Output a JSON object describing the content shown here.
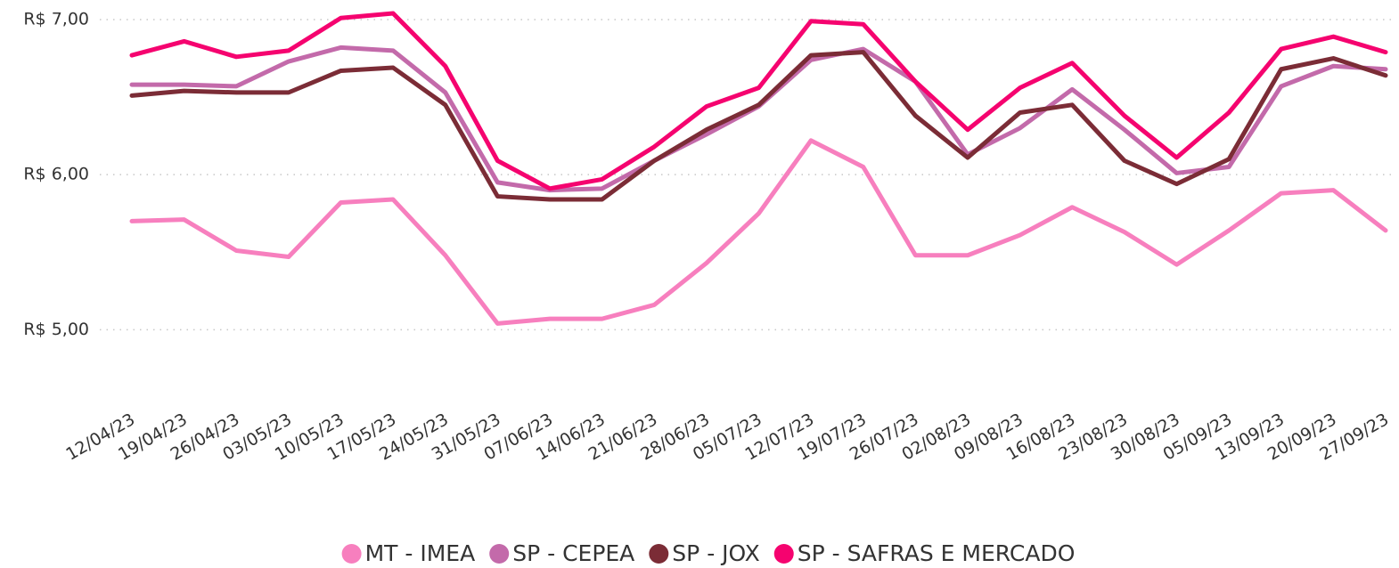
{
  "chart_data": {
    "type": "line",
    "categories": [
      "12/04/23",
      "19/04/23",
      "26/04/23",
      "03/05/23",
      "10/05/23",
      "17/05/23",
      "24/05/23",
      "31/05/23",
      "07/06/23",
      "14/06/23",
      "21/06/23",
      "28/06/23",
      "05/07/23",
      "12/07/23",
      "19/07/23",
      "26/07/23",
      "02/08/23",
      "09/08/23",
      "16/08/23",
      "23/08/23",
      "30/08/23",
      "05/09/23",
      "13/09/23",
      "20/09/23",
      "27/09/23"
    ],
    "series": [
      {
        "name": "MT - IMEA",
        "color": "#f77fbe",
        "values": [
          5.7,
          5.71,
          5.51,
          5.47,
          5.82,
          5.84,
          5.48,
          5.04,
          5.07,
          5.07,
          5.16,
          5.43,
          5.75,
          6.22,
          6.05,
          5.48,
          5.48,
          5.61,
          5.79,
          5.63,
          5.42,
          5.64,
          5.88,
          5.9,
          5.64
        ]
      },
      {
        "name": "SP - CEPEA",
        "color": "#c36aaa",
        "values": [
          6.58,
          6.58,
          6.57,
          6.73,
          6.82,
          6.8,
          6.53,
          5.95,
          5.9,
          5.91,
          6.09,
          6.26,
          6.44,
          6.74,
          6.81,
          6.6,
          6.13,
          6.3,
          6.55,
          6.29,
          6.01,
          6.05,
          6.57,
          6.7,
          6.68
        ]
      },
      {
        "name": "SP - JOX",
        "color": "#7b2c36",
        "values": [
          6.51,
          6.54,
          6.53,
          6.53,
          6.67,
          6.69,
          6.45,
          5.86,
          5.84,
          5.84,
          6.09,
          6.29,
          6.45,
          6.77,
          6.79,
          6.38,
          6.11,
          6.4,
          6.45,
          6.09,
          5.94,
          6.1,
          6.68,
          6.75,
          6.64
        ]
      },
      {
        "name": "SP - SAFRAS E MERCADO",
        "color": "#f5036f",
        "values": [
          6.77,
          6.86,
          6.76,
          6.8,
          7.01,
          7.04,
          6.7,
          6.09,
          5.91,
          5.97,
          6.18,
          6.44,
          6.56,
          6.99,
          6.97,
          6.6,
          6.29,
          6.56,
          6.72,
          6.38,
          6.11,
          6.4,
          6.81,
          6.89,
          6.79
        ]
      }
    ],
    "ylim": [
      4.6,
      7.1
    ],
    "yticks": [
      {
        "value": 5,
        "label": "R$ 5,00"
      },
      {
        "value": 6,
        "label": "R$ 6,00"
      },
      {
        "value": 7,
        "label": "R$ 7,00"
      }
    ],
    "grid": true,
    "legend": "bottom"
  }
}
